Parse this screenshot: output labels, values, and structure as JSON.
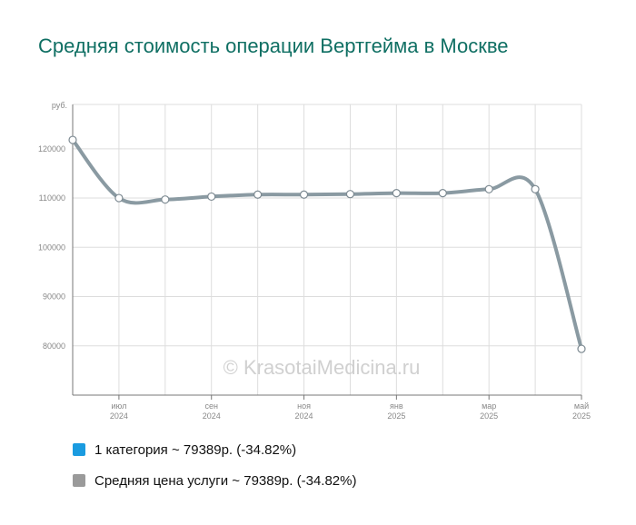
{
  "title": "Средняя стоимость операции Вертгейма в Москве",
  "watermark": "© KrasotaiMedicina.ru",
  "legend": [
    {
      "label": "1 категория ~ 79389р. (-34.82%)",
      "color": "#1a9be0"
    },
    {
      "label": "Средняя цена услуги ~ 79389р. (-34.82%)",
      "color": "#9a9a9a"
    }
  ],
  "chart_data": {
    "type": "line",
    "ylabel": "руб.",
    "ylim": [
      70000,
      129000
    ],
    "yticks": [
      80000,
      90000,
      100000,
      110000,
      120000
    ],
    "x": [
      "2024-06",
      "2024-07",
      "2024-08",
      "2024-09",
      "2024-10",
      "2024-11",
      "2024-12",
      "2025-01",
      "2025-02",
      "2025-03",
      "2025-04",
      "2025-05"
    ],
    "xtick_labels": [
      {
        "index": 1,
        "month": "июл",
        "year": "2024"
      },
      {
        "index": 3,
        "month": "сен",
        "year": "2024"
      },
      {
        "index": 5,
        "month": "ноя",
        "year": "2024"
      },
      {
        "index": 7,
        "month": "янв",
        "year": "2025"
      },
      {
        "index": 9,
        "month": "мар",
        "year": "2025"
      },
      {
        "index": 11,
        "month": "май",
        "year": "2025"
      }
    ],
    "grid": true,
    "series": [
      {
        "name": "1 категория",
        "color": "#1a9be0",
        "values": [
          121800,
          110000,
          109700,
          110300,
          110700,
          110700,
          110800,
          111000,
          111000,
          111800,
          111800,
          79389
        ]
      },
      {
        "name": "Средняя цена услуги",
        "color": "#8a9aa2",
        "values": [
          121800,
          110000,
          109700,
          110300,
          110700,
          110700,
          110800,
          111000,
          111000,
          111800,
          111800,
          79389
        ]
      }
    ]
  }
}
